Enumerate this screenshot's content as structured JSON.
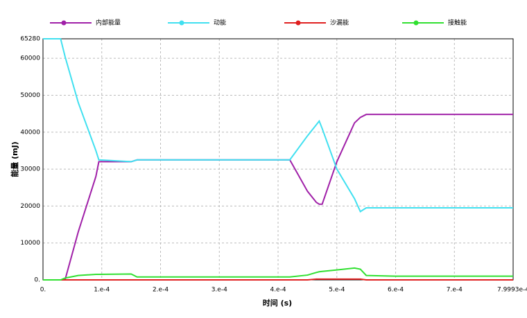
{
  "chart_data": {
    "type": "line",
    "xlabel": "时间 (s)",
    "ylabel": "能量 (mJ)",
    "x": [
      0,
      3e-05,
      3.75e-05,
      6e-05,
      9e-05,
      9.5e-05,
      0.00015,
      0.00016,
      0.00042,
      0.00045,
      0.000465,
      0.00047,
      0.000475,
      0.0005,
      0.00053,
      0.00054,
      0.00055,
      0.0006,
      0.00079993
    ],
    "series": [
      {
        "name": "内部能量",
        "color": "#a020a8",
        "values": [
          0,
          0,
          0,
          13000,
          28000,
          32000,
          32000,
          32500,
          32500,
          24000,
          21000,
          20500,
          20500,
          32000,
          42500,
          44000,
          44800,
          44800,
          44800
        ]
      },
      {
        "name": "动能",
        "color": "#40e0f0",
        "values": [
          65280,
          65280,
          60500,
          48000,
          35000,
          32500,
          32000,
          32500,
          32500,
          39000,
          42000,
          43000,
          41000,
          30000,
          22000,
          18500,
          19500,
          19500,
          19500
        ]
      },
      {
        "name": "沙漏能",
        "color": "#e02020",
        "values": [
          0,
          0,
          0,
          0,
          0,
          0,
          0,
          0,
          0,
          0,
          200,
          200,
          200,
          200,
          200,
          200,
          0,
          0,
          0
        ]
      },
      {
        "name": "接触能",
        "color": "#30e030",
        "values": [
          0,
          0,
          500,
          1200,
          1500,
          1500,
          1600,
          800,
          800,
          1300,
          2000,
          2200,
          2300,
          2700,
          3200,
          2900,
          1200,
          1000,
          1000
        ]
      }
    ],
    "xlim": [
      0,
      0.00079993
    ],
    "xticks": [
      {
        "value": 0,
        "label": "0."
      },
      {
        "value": 0.0001,
        "label": "1.e-4"
      },
      {
        "value": 0.0002,
        "label": "2.e-4"
      },
      {
        "value": 0.0003,
        "label": "3.e-4"
      },
      {
        "value": 0.0004,
        "label": "4.e-4"
      },
      {
        "value": 0.0005,
        "label": "5.e-4"
      },
      {
        "value": 0.0006,
        "label": "6.e-4"
      },
      {
        "value": 0.0007,
        "label": "7.e-4"
      },
      {
        "value": 0.00079993,
        "label": "7.9993e-4"
      }
    ],
    "ylim": [
      0,
      65280
    ],
    "yticks": [
      {
        "value": 0,
        "label": "0."
      },
      10000,
      20000,
      30000,
      40000,
      50000,
      60000,
      65280
    ],
    "grid": true,
    "legend": "top"
  }
}
